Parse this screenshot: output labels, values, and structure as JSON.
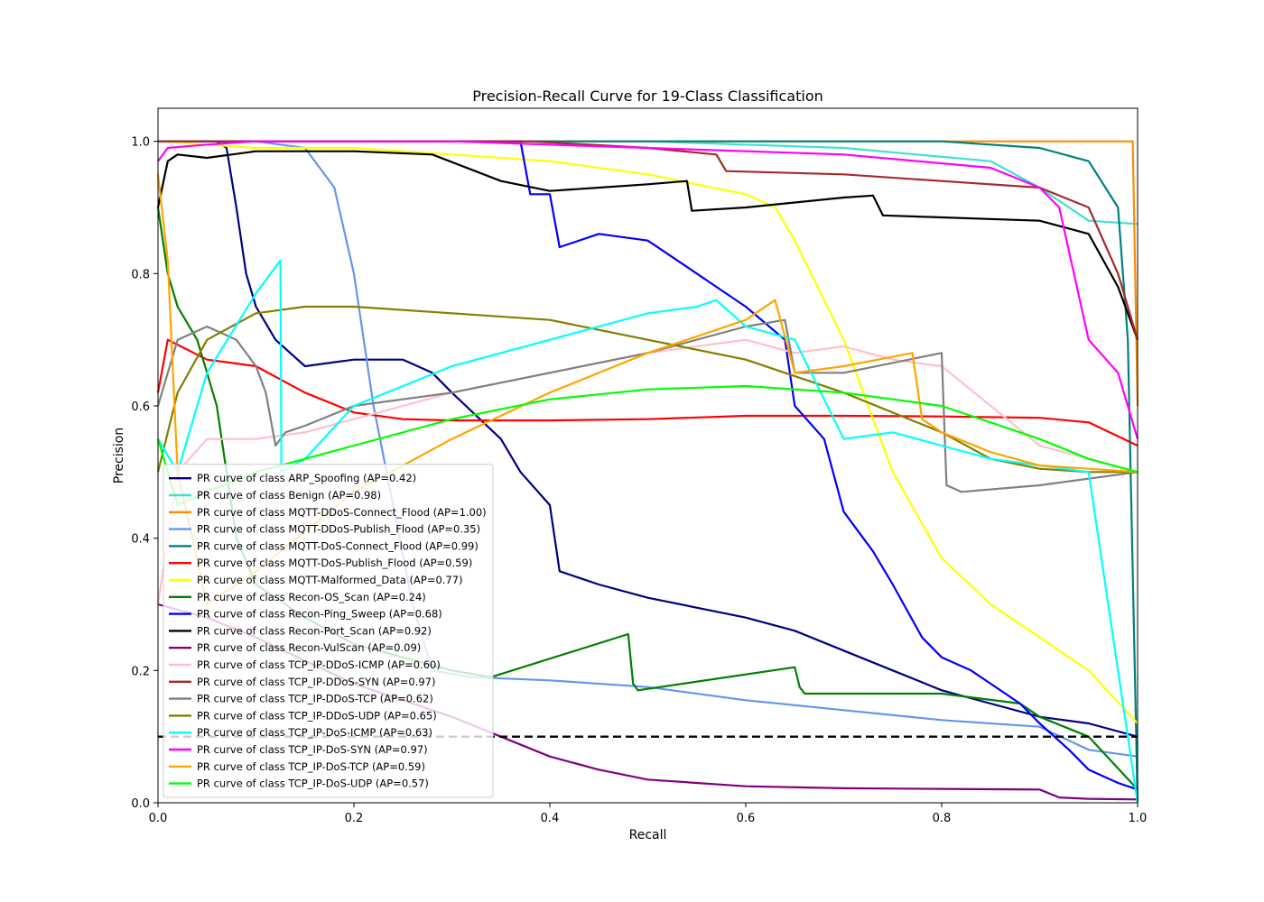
{
  "chart_data": {
    "type": "line",
    "title": "Precision-Recall Curve for 19-Class Classification",
    "xlabel": "Recall",
    "ylabel": "Precision",
    "xlim": [
      0.0,
      1.0
    ],
    "ylim": [
      0.0,
      1.05
    ],
    "xticks": [
      0.0,
      0.2,
      0.4,
      0.6,
      0.8,
      1.0
    ],
    "xtick_labels": [
      "0.0",
      "0.2",
      "0.4",
      "0.6",
      "0.8",
      "1.0"
    ],
    "yticks": [
      0.0,
      0.2,
      0.4,
      0.6,
      0.8,
      1.0
    ],
    "ytick_labels": [
      "0.0",
      "0.2",
      "0.4",
      "0.6",
      "0.8",
      "1.0"
    ],
    "grid": false,
    "legend_position": "lower-left",
    "baseline": {
      "y": 0.1,
      "style": "dashed",
      "color": "#000000"
    },
    "series": [
      {
        "name": "PR curve of class ARP_Spoofing (AP=0.42)",
        "color": "#000080",
        "x": [
          0,
          0.06,
          0.07,
          0.08,
          0.09,
          0.1,
          0.12,
          0.15,
          0.2,
          0.25,
          0.28,
          0.3,
          0.35,
          0.37,
          0.4,
          0.41,
          0.45,
          0.5,
          0.6,
          0.65,
          0.7,
          0.75,
          0.8,
          0.85,
          0.9,
          0.95,
          1.0
        ],
        "y": [
          1.0,
          1.0,
          0.99,
          0.9,
          0.8,
          0.75,
          0.7,
          0.66,
          0.67,
          0.67,
          0.65,
          0.62,
          0.55,
          0.5,
          0.45,
          0.35,
          0.33,
          0.31,
          0.28,
          0.26,
          0.23,
          0.2,
          0.17,
          0.15,
          0.13,
          0.12,
          0.1
        ]
      },
      {
        "name": "PR curve of class Benign (AP=0.98)",
        "color": "#40E0D0",
        "x": [
          0,
          0.1,
          0.3,
          0.5,
          0.7,
          0.85,
          0.9,
          0.95,
          1.0
        ],
        "y": [
          1.0,
          1.0,
          1.0,
          1.0,
          0.99,
          0.97,
          0.93,
          0.88,
          0.875
        ]
      },
      {
        "name": "PR curve of class MQTT-DDoS-Connect_Flood (AP=1.00)",
        "color": "#FF8C00",
        "x": [
          0,
          0.01,
          0.1,
          0.5,
          0.9,
          0.995,
          1.0
        ],
        "y": [
          1.0,
          1.0,
          1.0,
          1.0,
          1.0,
          1.0,
          0.6
        ]
      },
      {
        "name": "PR curve of class MQTT-DDoS-Publish_Flood (AP=0.35)",
        "color": "#6495ED",
        "x": [
          0,
          0.1,
          0.15,
          0.18,
          0.2,
          0.22,
          0.24,
          0.26,
          0.28,
          0.32,
          0.4,
          0.5,
          0.6,
          0.7,
          0.8,
          0.9,
          0.95,
          1.0
        ],
        "y": [
          1.0,
          1.0,
          0.99,
          0.93,
          0.8,
          0.6,
          0.45,
          0.3,
          0.2,
          0.19,
          0.185,
          0.175,
          0.155,
          0.14,
          0.125,
          0.115,
          0.08,
          0.07
        ]
      },
      {
        "name": "PR curve of class MQTT-DoS-Connect_Flood (AP=0.99)",
        "color": "#008080",
        "x": [
          0,
          0.1,
          0.5,
          0.8,
          0.9,
          0.95,
          0.98,
          0.99,
          1.0
        ],
        "y": [
          1.0,
          1.0,
          1.0,
          1.0,
          0.99,
          0.97,
          0.9,
          0.7,
          0.0
        ]
      },
      {
        "name": "PR curve of class MQTT-DoS-Publish_Flood (AP=0.59)",
        "color": "#FF0000",
        "x": [
          0,
          0.01,
          0.05,
          0.1,
          0.15,
          0.2,
          0.25,
          0.3,
          0.4,
          0.5,
          0.6,
          0.7,
          0.8,
          0.9,
          0.95,
          1.0
        ],
        "y": [
          0.62,
          0.7,
          0.67,
          0.66,
          0.62,
          0.59,
          0.58,
          0.578,
          0.578,
          0.58,
          0.585,
          0.585,
          0.584,
          0.582,
          0.575,
          0.54
        ]
      },
      {
        "name": "PR curve of class MQTT-Malformed_Data (AP=0.77)",
        "color": "#FFFF00",
        "x": [
          0,
          0.1,
          0.2,
          0.3,
          0.4,
          0.5,
          0.6,
          0.63,
          0.65,
          0.7,
          0.75,
          0.8,
          0.85,
          0.9,
          0.95,
          1.0
        ],
        "y": [
          1.0,
          0.99,
          0.99,
          0.98,
          0.97,
          0.95,
          0.92,
          0.9,
          0.85,
          0.7,
          0.5,
          0.37,
          0.3,
          0.25,
          0.2,
          0.12
        ]
      },
      {
        "name": "PR curve of class Recon-OS_Scan (AP=0.24)",
        "color": "#008000",
        "x": [
          0,
          0.01,
          0.02,
          0.04,
          0.05,
          0.06,
          0.07,
          0.08,
          0.1,
          0.15,
          0.2,
          0.25,
          0.3,
          0.34,
          0.48,
          0.485,
          0.49,
          0.65,
          0.655,
          0.66,
          0.8,
          0.88,
          0.9,
          0.95,
          1.0
        ],
        "y": [
          0.9,
          0.8,
          0.75,
          0.7,
          0.65,
          0.6,
          0.5,
          0.4,
          0.33,
          0.28,
          0.24,
          0.22,
          0.2,
          0.19,
          0.255,
          0.18,
          0.17,
          0.205,
          0.175,
          0.165,
          0.165,
          0.15,
          0.13,
          0.1,
          0.02
        ]
      },
      {
        "name": "PR curve of class Recon-Ping_Sweep (AP=0.68)",
        "color": "#0000FF",
        "x": [
          0,
          0.37,
          0.38,
          0.39,
          0.4,
          0.41,
          0.45,
          0.5,
          0.55,
          0.57,
          0.6,
          0.64,
          0.65,
          0.68,
          0.7,
          0.73,
          0.75,
          0.78,
          0.8,
          0.83,
          0.85,
          0.88,
          0.9,
          0.93,
          0.95,
          0.98,
          1.0
        ],
        "y": [
          1.0,
          1.0,
          0.92,
          0.92,
          0.92,
          0.84,
          0.86,
          0.85,
          0.8,
          0.78,
          0.75,
          0.7,
          0.6,
          0.55,
          0.44,
          0.38,
          0.33,
          0.25,
          0.22,
          0.2,
          0.18,
          0.15,
          0.12,
          0.08,
          0.05,
          0.03,
          0.02
        ]
      },
      {
        "name": "PR curve of class Recon-Port_Scan (AP=0.92)",
        "color": "#000000",
        "x": [
          0,
          0.01,
          0.02,
          0.05,
          0.1,
          0.2,
          0.28,
          0.35,
          0.4,
          0.45,
          0.5,
          0.54,
          0.545,
          0.6,
          0.7,
          0.73,
          0.74,
          0.8,
          0.9,
          0.95,
          0.98,
          1.0
        ],
        "y": [
          0.9,
          0.97,
          0.98,
          0.975,
          0.985,
          0.985,
          0.98,
          0.94,
          0.925,
          0.93,
          0.935,
          0.94,
          0.895,
          0.9,
          0.915,
          0.918,
          0.888,
          0.885,
          0.88,
          0.86,
          0.78,
          0.7
        ]
      },
      {
        "name": "PR curve of class Recon-VulScan (AP=0.09)",
        "color": "#800080",
        "x": [
          0,
          0.05,
          0.1,
          0.2,
          0.3,
          0.35,
          0.4,
          0.45,
          0.5,
          0.6,
          0.7,
          0.8,
          0.9,
          0.92,
          0.95,
          1.0
        ],
        "y": [
          0.3,
          0.28,
          0.25,
          0.18,
          0.13,
          0.1,
          0.07,
          0.05,
          0.035,
          0.025,
          0.022,
          0.021,
          0.02,
          0.008,
          0.006,
          0.005
        ]
      },
      {
        "name": "PR curve of class TCP_IP-DDoS-ICMP (AP=0.60)",
        "color": "#FFC0CB",
        "x": [
          0,
          0.02,
          0.05,
          0.1,
          0.15,
          0.2,
          0.25,
          0.3,
          0.4,
          0.5,
          0.6,
          0.65,
          0.7,
          0.75,
          0.8,
          0.85,
          0.9,
          0.95,
          1.0
        ],
        "y": [
          0.3,
          0.5,
          0.55,
          0.55,
          0.56,
          0.58,
          0.6,
          0.62,
          0.65,
          0.68,
          0.7,
          0.68,
          0.69,
          0.67,
          0.66,
          0.6,
          0.54,
          0.52,
          0.5
        ]
      },
      {
        "name": "PR curve of class TCP_IP-DDoS-SYN (AP=0.97)",
        "color": "#A52A2A",
        "x": [
          0,
          0.1,
          0.3,
          0.38,
          0.5,
          0.57,
          0.58,
          0.7,
          0.8,
          0.9,
          0.95,
          0.98,
          1.0
        ],
        "y": [
          1.0,
          1.0,
          1.0,
          1.0,
          0.99,
          0.98,
          0.955,
          0.95,
          0.94,
          0.93,
          0.9,
          0.8,
          0.7
        ]
      },
      {
        "name": "PR curve of class TCP_IP-DDoS-TCP (AP=0.62)",
        "color": "#808080",
        "x": [
          0,
          0.02,
          0.05,
          0.08,
          0.1,
          0.11,
          0.12,
          0.13,
          0.15,
          0.2,
          0.3,
          0.4,
          0.5,
          0.6,
          0.64,
          0.65,
          0.7,
          0.8,
          0.805,
          0.82,
          0.9,
          1.0
        ],
        "y": [
          0.6,
          0.7,
          0.72,
          0.7,
          0.66,
          0.62,
          0.54,
          0.56,
          0.57,
          0.6,
          0.62,
          0.65,
          0.68,
          0.72,
          0.73,
          0.65,
          0.65,
          0.68,
          0.48,
          0.47,
          0.48,
          0.5
        ]
      },
      {
        "name": "PR curve of class TCP_IP-DDoS-UDP (AP=0.65)",
        "color": "#808000",
        "x": [
          0,
          0.02,
          0.05,
          0.1,
          0.15,
          0.2,
          0.3,
          0.4,
          0.5,
          0.6,
          0.7,
          0.8,
          0.85,
          0.9,
          0.95,
          1.0
        ],
        "y": [
          0.5,
          0.62,
          0.7,
          0.74,
          0.75,
          0.75,
          0.74,
          0.73,
          0.7,
          0.67,
          0.62,
          0.56,
          0.52,
          0.505,
          0.5,
          0.5
        ]
      },
      {
        "name": "PR curve of class TCP_IP-DoS-ICMP (AP=0.63)",
        "color": "#00FFFF",
        "x": [
          0,
          0.02,
          0.05,
          0.1,
          0.125,
          0.126,
          0.15,
          0.2,
          0.25,
          0.3,
          0.35,
          0.4,
          0.45,
          0.5,
          0.55,
          0.57,
          0.6,
          0.65,
          0.7,
          0.75,
          0.8,
          0.85,
          0.9,
          0.95,
          1.0
        ],
        "y": [
          0.55,
          0.5,
          0.65,
          0.77,
          0.82,
          0.5,
          0.52,
          0.6,
          0.63,
          0.66,
          0.68,
          0.7,
          0.72,
          0.74,
          0.75,
          0.76,
          0.72,
          0.7,
          0.55,
          0.56,
          0.54,
          0.52,
          0.51,
          0.5,
          0.0
        ]
      },
      {
        "name": "PR curve of class TCP_IP-DoS-SYN (AP=0.97)",
        "color": "#FF00FF",
        "x": [
          0,
          0.01,
          0.05,
          0.1,
          0.3,
          0.5,
          0.7,
          0.85,
          0.9,
          0.92,
          0.95,
          0.98,
          1.0
        ],
        "y": [
          0.97,
          0.99,
          0.995,
          1.0,
          1.0,
          0.99,
          0.98,
          0.96,
          0.93,
          0.9,
          0.7,
          0.65,
          0.55
        ]
      },
      {
        "name": "PR curve of class TCP_IP-DoS-TCP (AP=0.59)",
        "color": "#FFA500",
        "x": [
          0,
          0.01,
          0.02,
          0.05,
          0.1,
          0.2,
          0.3,
          0.4,
          0.5,
          0.6,
          0.63,
          0.65,
          0.7,
          0.77,
          0.78,
          0.8,
          0.85,
          0.9,
          0.95,
          1.0
        ],
        "y": [
          0.95,
          0.82,
          0.5,
          0.3,
          0.35,
          0.47,
          0.55,
          0.62,
          0.68,
          0.73,
          0.76,
          0.65,
          0.66,
          0.68,
          0.58,
          0.56,
          0.53,
          0.51,
          0.505,
          0.5
        ]
      },
      {
        "name": "PR curve of class TCP_IP-DoS-UDP (AP=0.57)",
        "color": "#00FF00",
        "x": [
          0,
          0.02,
          0.05,
          0.1,
          0.15,
          0.2,
          0.3,
          0.4,
          0.5,
          0.6,
          0.7,
          0.8,
          0.9,
          0.95,
          1.0
        ],
        "y": [
          0.55,
          0.45,
          0.47,
          0.5,
          0.52,
          0.54,
          0.58,
          0.61,
          0.625,
          0.63,
          0.62,
          0.6,
          0.55,
          0.52,
          0.5
        ]
      }
    ]
  }
}
